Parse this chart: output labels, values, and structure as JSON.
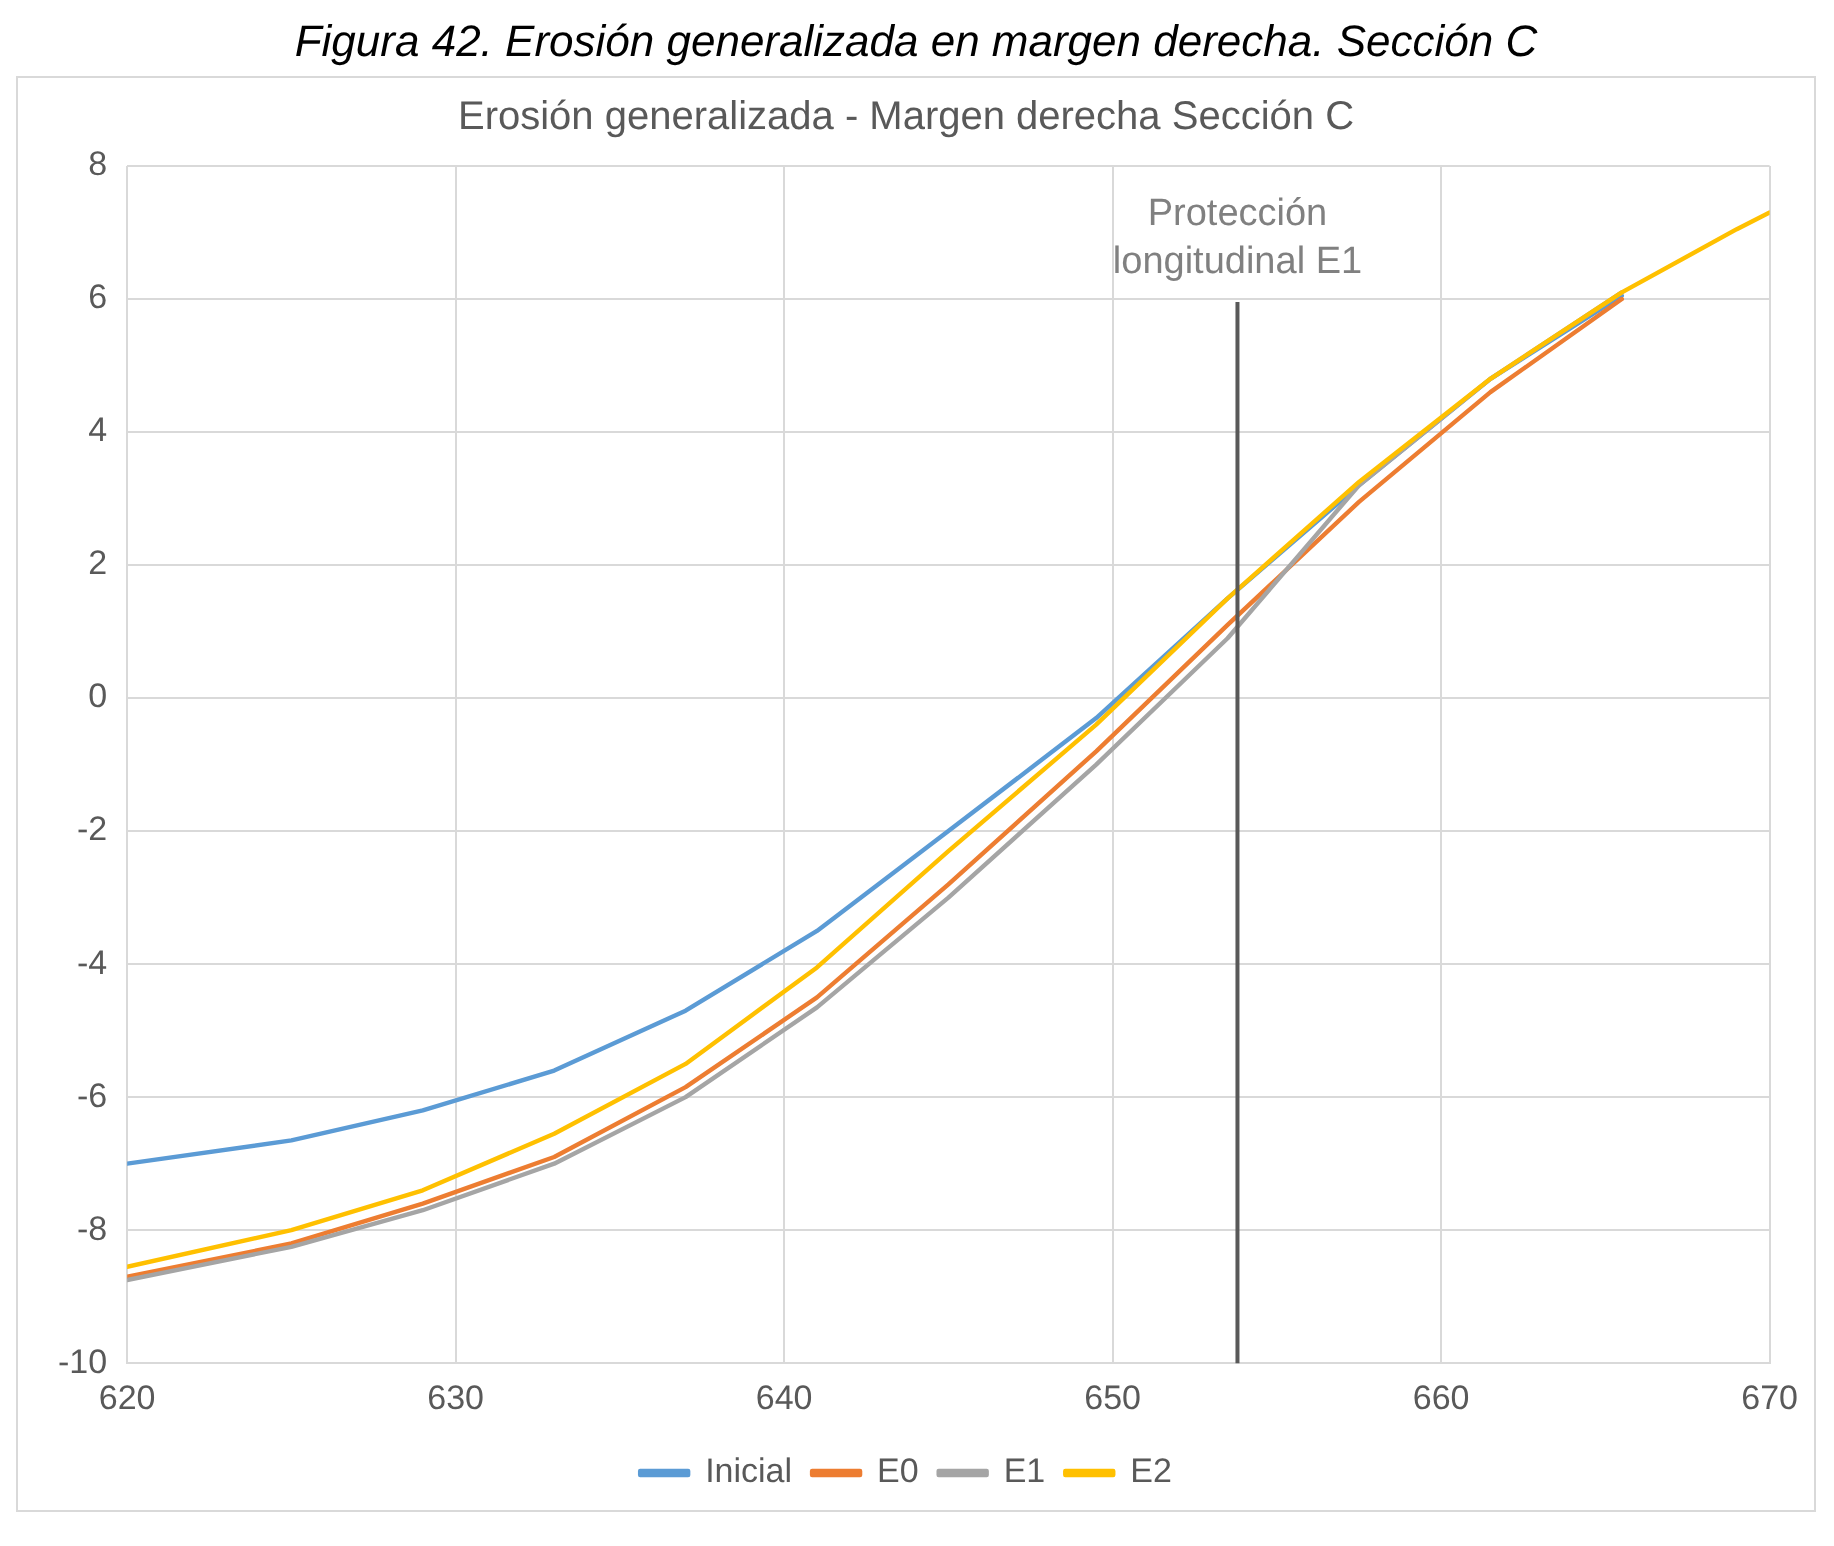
{
  "chart_data": {
    "type": "line",
    "title": "Erosión generalizada - Margen derecha Sección C",
    "annotations": [
      "Figura 42. Erosión generalizada en margen derecha. Sección C"
    ],
    "series": [
      {
        "name": "Inicial",
        "color": "#5b9bd5",
        "x": [
          620,
          625,
          629,
          633,
          637,
          641,
          645,
          649.5,
          653.5,
          657.5,
          661.5,
          665.5
        ],
        "values": [
          -7.0,
          -6.65,
          -6.2,
          -5.6,
          -4.7,
          -3.5,
          -2.0,
          -0.3,
          1.5,
          3.2,
          4.8,
          6.05
        ]
      },
      {
        "name": "E0",
        "color": "#ed7d31",
        "x": [
          620,
          625,
          629,
          633,
          637,
          641,
          645,
          649.5,
          653.5,
          657.5,
          661.5,
          665.5
        ],
        "values": [
          -8.7,
          -8.2,
          -7.6,
          -6.9,
          -5.85,
          -4.5,
          -2.8,
          -0.8,
          1.1,
          2.95,
          4.6,
          6.0
        ]
      },
      {
        "name": "E1",
        "color": "#a5a5a5",
        "x": [
          620,
          625,
          629,
          633,
          637,
          641,
          645,
          649.5,
          653.5,
          657.5,
          661.5,
          665.5
        ],
        "values": [
          -8.75,
          -8.25,
          -7.7,
          -7.0,
          -6.0,
          -4.65,
          -3.0,
          -1.0,
          0.9,
          3.2,
          4.8,
          6.1
        ]
      },
      {
        "name": "E2",
        "color": "#ffc000",
        "x": [
          620,
          625,
          629,
          633,
          637,
          641,
          645,
          649.5,
          653.5,
          657.5,
          661.5,
          665.5,
          669,
          670
        ],
        "values": [
          -8.55,
          -8.0,
          -7.4,
          -6.55,
          -5.5,
          -4.05,
          -2.3,
          -0.4,
          1.5,
          3.25,
          4.8,
          6.1,
          7.05,
          7.3
        ]
      }
    ],
    "xlim": [
      620,
      670
    ],
    "xticks": [
      620,
      630,
      640,
      650,
      660,
      670
    ],
    "ylim": [
      -10,
      8
    ],
    "yticks": [
      -10,
      -8,
      -6,
      -4,
      -2,
      0,
      2,
      4,
      6,
      8
    ],
    "ref_lines": [
      {
        "axis": "x",
        "value": 653.8,
        "label": "Protección longitudinal E1",
        "color": "#595959"
      }
    ],
    "grid": true,
    "legend": "bottom",
    "marker": "none",
    "line_style": "solid"
  }
}
